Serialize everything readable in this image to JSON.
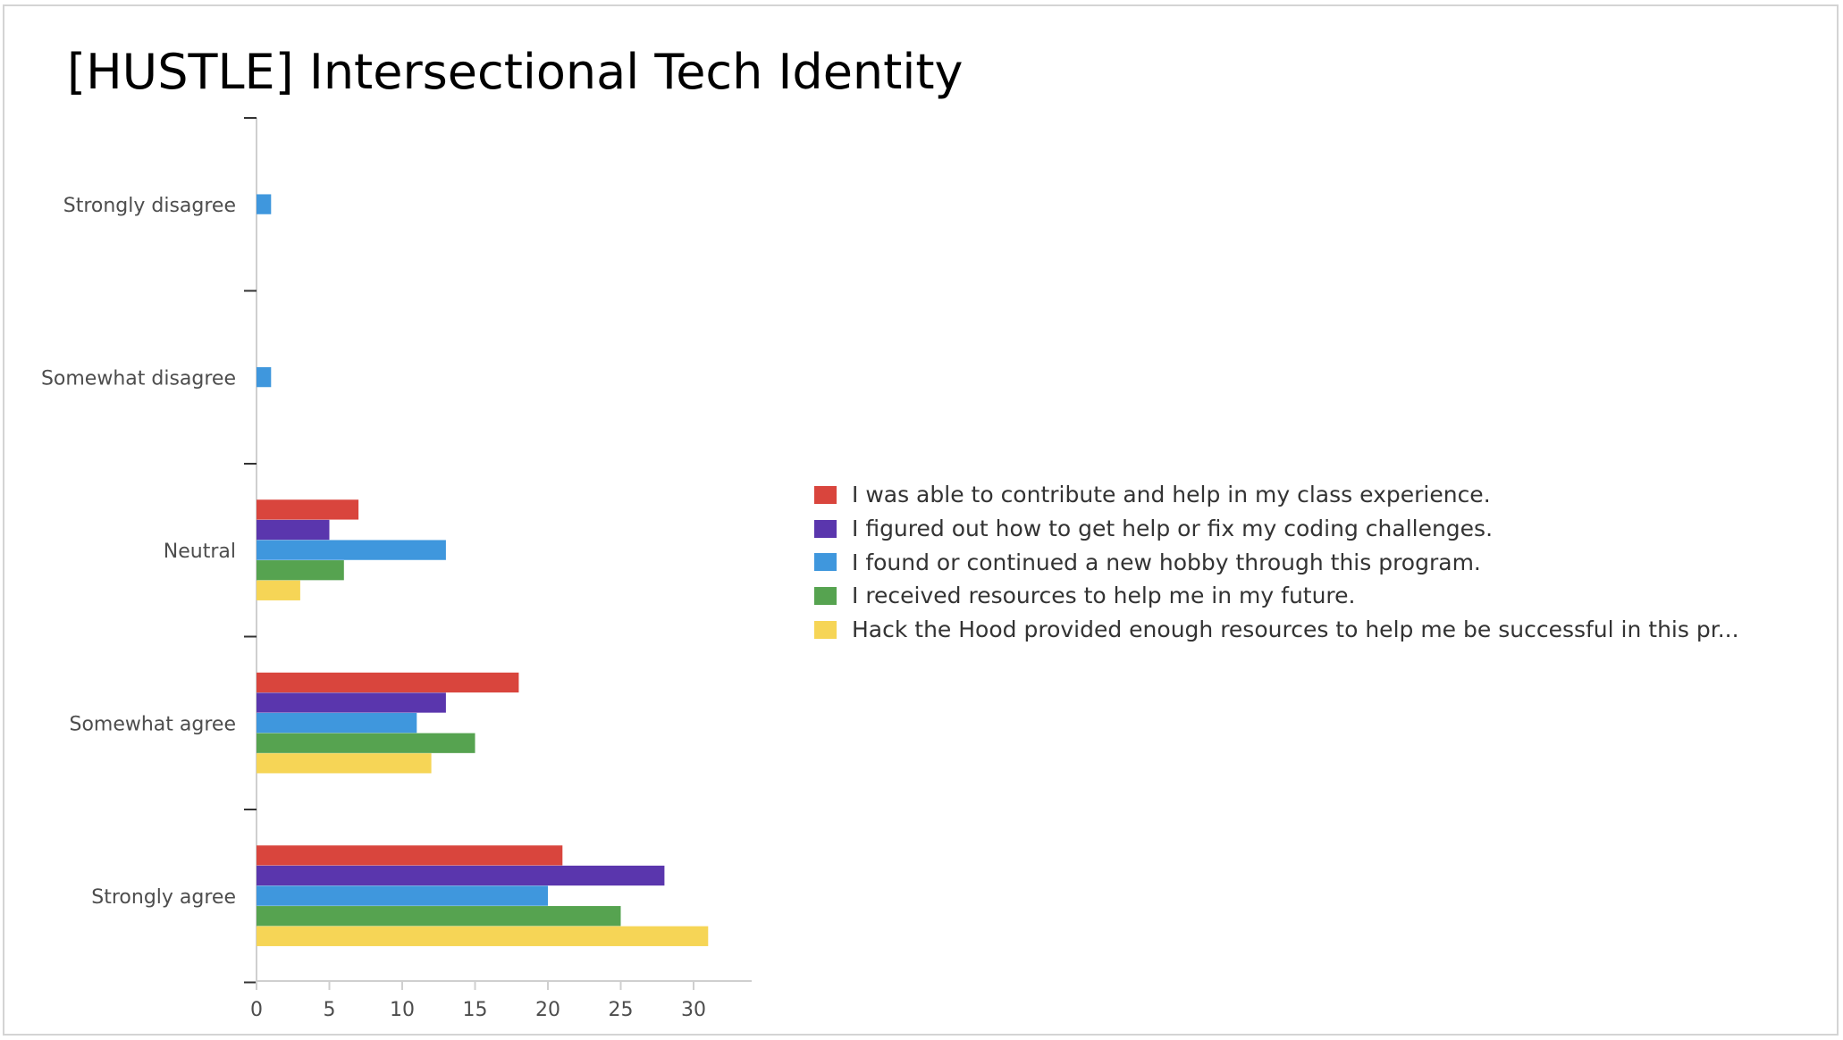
{
  "title": "[HUSTLE] Intersectional Tech Identity",
  "chart_data": {
    "type": "bar",
    "orientation": "horizontal",
    "categories": [
      "Strongly disagree",
      "Somewhat disagree",
      "Neutral",
      "Somewhat agree",
      "Strongly agree"
    ],
    "series": [
      {
        "name": "I was able to contribute and help in my class experience.",
        "color": "#d9453d",
        "values": [
          0,
          0,
          7,
          18,
          21
        ]
      },
      {
        "name": "I figured out how to get help or fix my coding challenges.",
        "color": "#5a36ad",
        "values": [
          0,
          0,
          5,
          13,
          28
        ]
      },
      {
        "name": "I found or continued a new hobby through this program.",
        "color": "#3f97dd",
        "values": [
          1,
          1,
          13,
          11,
          20
        ]
      },
      {
        "name": "I received resources to help me in my future.",
        "color": "#56a350",
        "values": [
          0,
          0,
          6,
          15,
          25
        ]
      },
      {
        "name": "Hack the Hood provided enough resources to help me be successful in this pr...",
        "color": "#f6d556",
        "values": [
          0,
          0,
          3,
          12,
          31
        ]
      }
    ],
    "xticks": [
      0,
      5,
      10,
      15,
      20,
      25,
      30
    ],
    "xlim": [
      0,
      34
    ],
    "xlabel": "",
    "ylabel": "",
    "grid": false,
    "legend_position": "right"
  }
}
